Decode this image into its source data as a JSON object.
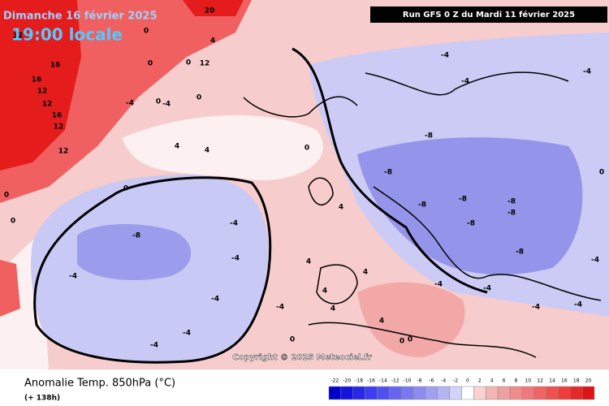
{
  "header": {
    "date": "Dimanche 16 février 2025",
    "time": "19:00 locale",
    "run": "Run GFS 0 Z du Mardi 11 février 2025"
  },
  "copyright": "Copyright © 2025 Meteociel.fr",
  "footer": {
    "title": "Anomalie Temp. 850hPa (°C)",
    "lead": "(+ 138h)"
  },
  "colorbar": {
    "ticks": [
      -22,
      -20,
      -18,
      -16,
      -14,
      -12,
      -10,
      -8,
      -6,
      -4,
      -2,
      0,
      2,
      4,
      6,
      8,
      10,
      12,
      14,
      16,
      18,
      20
    ],
    "colors": [
      "#0000c8",
      "#1414dc",
      "#2828e6",
      "#3c3cf0",
      "#5050f0",
      "#6464f0",
      "#7878f0",
      "#8c8cf0",
      "#a0a0f0",
      "#b4b4f5",
      "#d2d2fa",
      "#ffffff",
      "#fad2d2",
      "#f5b4b4",
      "#f0a0a0",
      "#f08c8c",
      "#f07878",
      "#f06464",
      "#f05050",
      "#f03c3c",
      "#e62828",
      "#dc1414"
    ]
  },
  "contour_labels": [
    "20",
    "12",
    "16",
    "16",
    "12",
    "12",
    "16",
    "12",
    "12",
    "0",
    "0",
    "4",
    "0",
    "12",
    "-4",
    "0",
    "0",
    "4",
    "4",
    "0",
    "0",
    "-4",
    "-4",
    "-4",
    "-4",
    "-4",
    "-8",
    "-4",
    "-8",
    "-8",
    "-8",
    "-8",
    "-8",
    "-8",
    "-8",
    "-4",
    "-4",
    "-8",
    "-4",
    "-4",
    "-4",
    "0",
    "-4",
    "-4",
    "0",
    "4",
    "4",
    "4",
    "4",
    "0",
    "0",
    "4",
    "4",
    "-4",
    "0",
    "0",
    "-4",
    "-4"
  ]
}
